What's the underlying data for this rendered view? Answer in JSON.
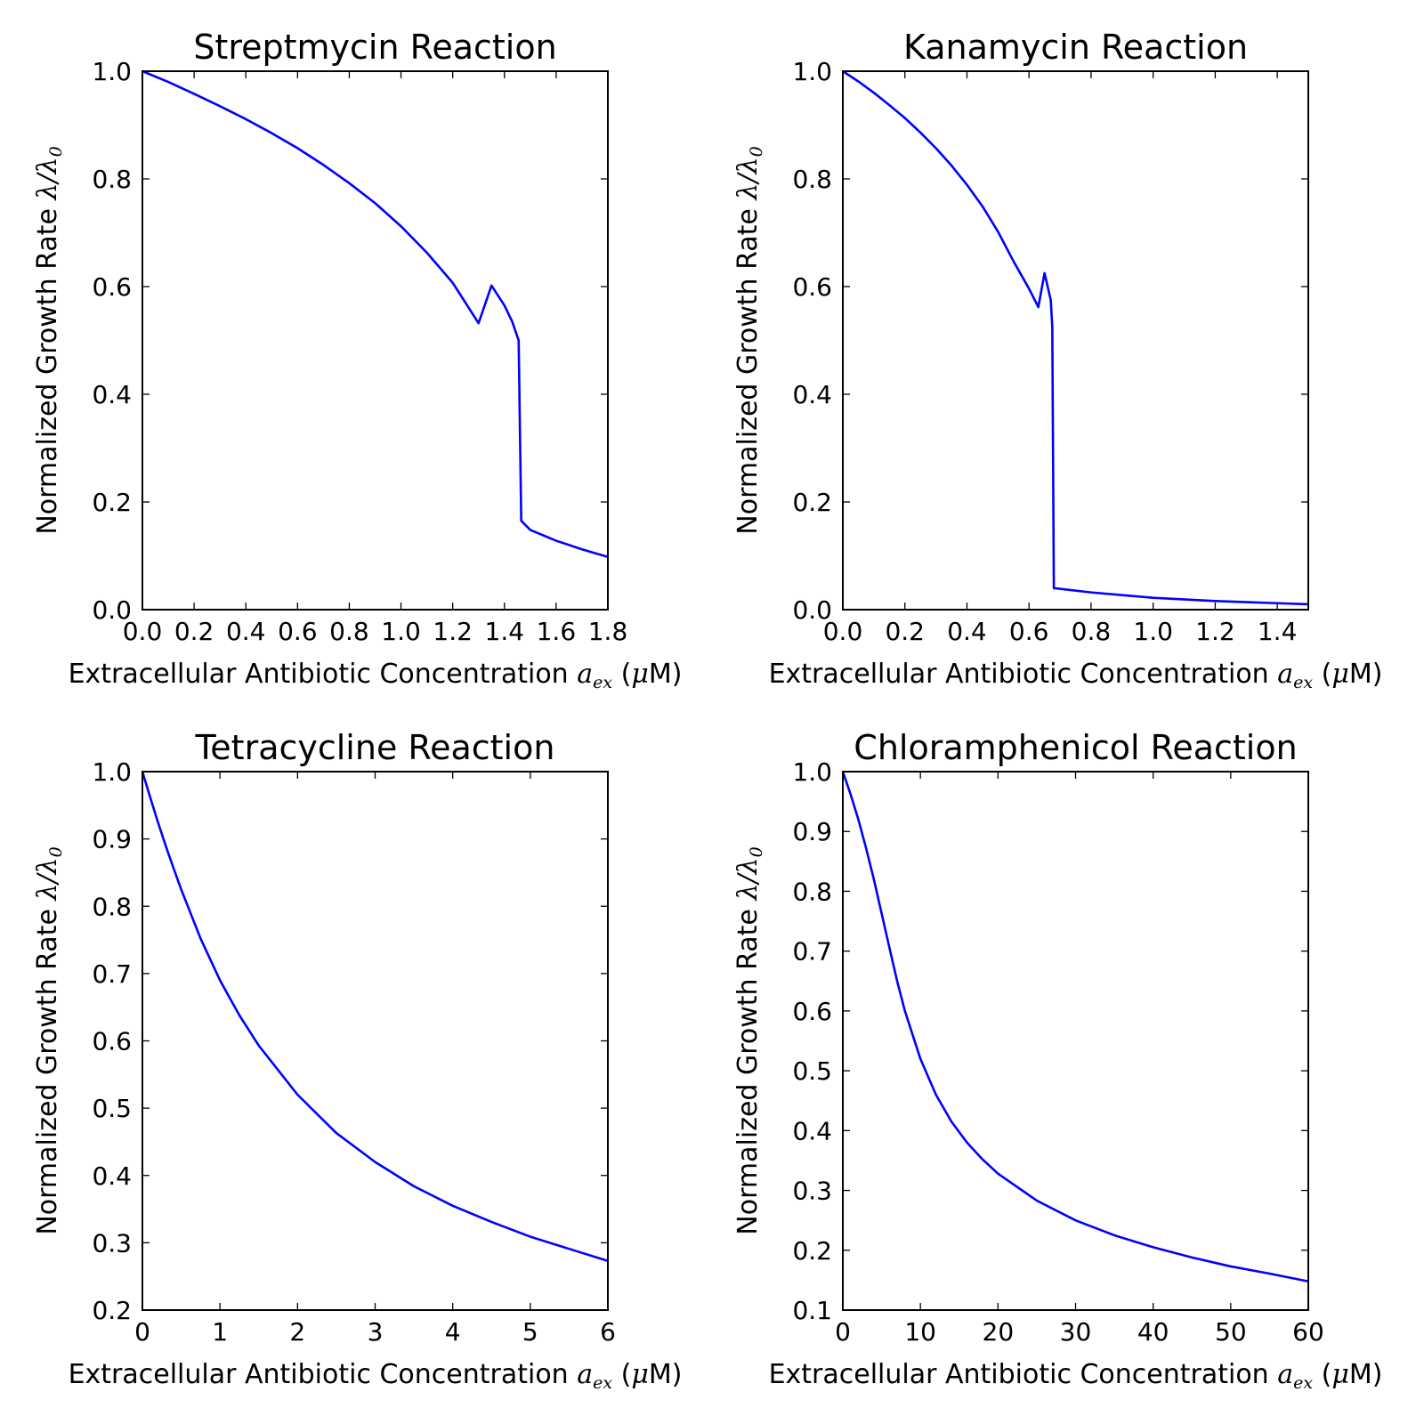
{
  "chart_data": [
    {
      "type": "line",
      "title": "Streptmycin Reaction",
      "xlabel": {
        "text": "Extracellular Antibiotic Concentration ",
        "math_base": "a",
        "math_sub": "ex",
        "unit_open": " (",
        "unit_mu": "μ",
        "unit_close": "M)"
      },
      "ylabel": {
        "text": "Normalized Growth Rate ",
        "math": "λ/λ",
        "math_sub": "0"
      },
      "xlim": [
        0,
        1.8
      ],
      "ylim": [
        0,
        1.0
      ],
      "xticks": [
        "0.0",
        "0.2",
        "0.4",
        "0.6",
        "0.8",
        "1.0",
        "1.2",
        "1.4",
        "1.6",
        "1.8"
      ],
      "yticks": [
        "0.0",
        "0.2",
        "0.4",
        "0.6",
        "0.8",
        "1.0"
      ],
      "grid": false,
      "color": "#0000ff",
      "x": [
        0,
        0.1,
        0.2,
        0.3,
        0.4,
        0.5,
        0.6,
        0.7,
        0.8,
        0.9,
        1.0,
        1.1,
        1.2,
        1.3,
        1.35,
        1.4,
        1.43,
        1.455,
        1.465,
        1.5,
        1.6,
        1.7,
        1.8
      ],
      "y": [
        1.0,
        0.98,
        0.958,
        0.935,
        0.911,
        0.885,
        0.857,
        0.826,
        0.792,
        0.755,
        0.712,
        0.663,
        0.607,
        0.532,
        0.602,
        0.565,
        0.535,
        0.5,
        0.165,
        0.148,
        0.128,
        0.112,
        0.098
      ]
    },
    {
      "type": "line",
      "title": "Kanamycin Reaction",
      "xlabel": {
        "text": "Extracellular Antibiotic Concentration ",
        "math_base": "a",
        "math_sub": "ex",
        "unit_open": " (",
        "unit_mu": "μ",
        "unit_close": "M)"
      },
      "ylabel": {
        "text": "Normalized Growth Rate ",
        "math": "λ/λ",
        "math_sub": "0"
      },
      "xlim": [
        0,
        1.5
      ],
      "ylim": [
        0,
        1.0
      ],
      "xticks": [
        "0.0",
        "0.2",
        "0.4",
        "0.6",
        "0.8",
        "1.0",
        "1.2",
        "1.4"
      ],
      "yticks": [
        "0.0",
        "0.2",
        "0.4",
        "0.6",
        "0.8",
        "1.0"
      ],
      "grid": false,
      "color": "#0000ff",
      "x": [
        0,
        0.05,
        0.1,
        0.15,
        0.2,
        0.25,
        0.3,
        0.35,
        0.4,
        0.45,
        0.5,
        0.55,
        0.6,
        0.63,
        0.65,
        0.66,
        0.67,
        0.675,
        0.68,
        0.8,
        1.0,
        1.2,
        1.4,
        1.5
      ],
      "y": [
        1.0,
        0.981,
        0.96,
        0.937,
        0.913,
        0.886,
        0.857,
        0.825,
        0.789,
        0.749,
        0.702,
        0.647,
        0.596,
        0.562,
        0.625,
        0.6,
        0.575,
        0.525,
        0.04,
        0.032,
        0.022,
        0.016,
        0.012,
        0.01
      ]
    },
    {
      "type": "line",
      "title": "Tetracycline Reaction",
      "xlabel": {
        "text": "Extracellular Antibiotic Concentration ",
        "math_base": "a",
        "math_sub": "ex",
        "unit_open": " (",
        "unit_mu": "μ",
        "unit_close": "M)"
      },
      "ylabel": {
        "text": "Normalized Growth Rate ",
        "math": "λ/λ",
        "math_sub": "0"
      },
      "xlim": [
        0,
        6
      ],
      "ylim": [
        0.2,
        1.0
      ],
      "xticks": [
        "0",
        "1",
        "2",
        "3",
        "4",
        "5",
        "6"
      ],
      "yticks": [
        "0.2",
        "0.3",
        "0.4",
        "0.5",
        "0.6",
        "0.7",
        "0.8",
        "0.9",
        "1.0"
      ],
      "grid": false,
      "color": "#0000ff",
      "x": [
        0,
        0.1,
        0.2,
        0.3,
        0.4,
        0.5,
        0.75,
        1.0,
        1.25,
        1.5,
        2.0,
        2.5,
        3.0,
        3.5,
        4.0,
        4.5,
        5.0,
        5.5,
        6.0
      ],
      "y": [
        1.0,
        0.962,
        0.925,
        0.89,
        0.857,
        0.825,
        0.752,
        0.69,
        0.638,
        0.593,
        0.52,
        0.463,
        0.42,
        0.384,
        0.355,
        0.331,
        0.309,
        0.291,
        0.273
      ]
    },
    {
      "type": "line",
      "title": "Chloramphenicol Reaction",
      "xlabel": {
        "text": "Extracellular Antibiotic Concentration ",
        "math_base": "a",
        "math_sub": "ex",
        "unit_open": " (",
        "unit_mu": "μ",
        "unit_close": "M)"
      },
      "ylabel": {
        "text": "Normalized Growth Rate ",
        "math": "λ/λ",
        "math_sub": "0"
      },
      "xlim": [
        0,
        60
      ],
      "ylim": [
        0.1,
        1.0
      ],
      "xticks": [
        "0",
        "10",
        "20",
        "30",
        "40",
        "50",
        "60"
      ],
      "yticks": [
        "0.1",
        "0.2",
        "0.3",
        "0.4",
        "0.5",
        "0.6",
        "0.7",
        "0.8",
        "0.9",
        "1.0"
      ],
      "grid": false,
      "color": "#0000ff",
      "x": [
        0,
        1,
        2,
        3,
        4,
        5,
        6,
        7,
        8,
        10,
        12,
        14,
        16,
        18,
        20,
        25,
        30,
        35,
        40,
        45,
        50,
        55,
        60
      ],
      "y": [
        1.0,
        0.962,
        0.92,
        0.872,
        0.82,
        0.763,
        0.706,
        0.65,
        0.6,
        0.52,
        0.46,
        0.415,
        0.38,
        0.352,
        0.328,
        0.283,
        0.25,
        0.225,
        0.205,
        0.188,
        0.173,
        0.161,
        0.148
      ]
    }
  ]
}
